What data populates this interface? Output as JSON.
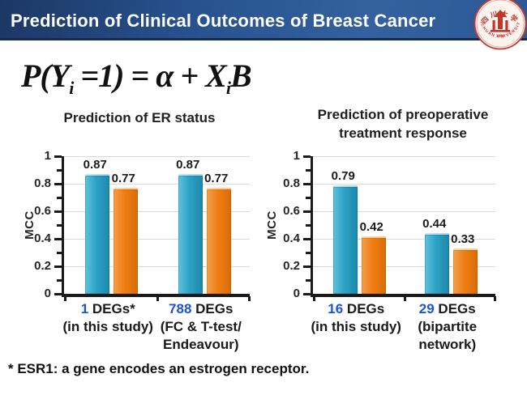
{
  "header": {
    "title": "Prediction of Clinical Outcomes of Breast Cancer"
  },
  "logo": {
    "top_text": "四川大学",
    "ring_text": "SICHUAN UNIVERSITY",
    "year": "1896"
  },
  "formula": {
    "part1": "P(Y",
    "sub1": "i",
    "part2": " =1) = α + X",
    "sub2": "i",
    "part3": "B"
  },
  "footnote": {
    "text": "* ESR1: a gene encodes an estrogen receptor."
  },
  "colors": {
    "teal": "#2ba2c6",
    "orange": "#ef7d13",
    "number_blue": "#1b52dc",
    "header_blue": "#2a5391",
    "gridline": "#d9d9d9"
  },
  "chart_data": [
    {
      "type": "bar",
      "title_lines": [
        "Prediction of ER status"
      ],
      "ylabel": "MCC",
      "ylim": [
        0,
        1
      ],
      "yticks": [
        0,
        0.2,
        0.4,
        0.6,
        0.8,
        1
      ],
      "grid": true,
      "legend": "none",
      "categories": [
        {
          "num": "1",
          "rest": " DEGs*",
          "sub": [
            "(in this study)"
          ]
        },
        {
          "num": "788",
          "rest": " DEGs",
          "sub": [
            "(FC & T-test/",
            "Endeavour)"
          ]
        }
      ],
      "series": [
        {
          "name": "teal",
          "color": "#2ba2c6",
          "values": [
            0.87,
            0.87
          ]
        },
        {
          "name": "orange",
          "color": "#ef7d13",
          "values": [
            0.77,
            0.77
          ]
        }
      ]
    },
    {
      "type": "bar",
      "title_lines": [
        "Prediction of preoperative",
        "treatment response"
      ],
      "ylabel": "MCC",
      "ylim": [
        0,
        1
      ],
      "yticks": [
        0,
        0.2,
        0.4,
        0.6,
        0.8,
        1
      ],
      "grid": true,
      "legend": "none",
      "categories": [
        {
          "num": "16",
          "rest": " DEGs",
          "sub": [
            "(in this study)"
          ]
        },
        {
          "num": "29",
          "rest": " DEGs",
          "sub": [
            "(bipartite",
            "network)"
          ]
        }
      ],
      "series": [
        {
          "name": "teal",
          "color": "#2ba2c6",
          "values": [
            0.79,
            0.44
          ]
        },
        {
          "name": "orange",
          "color": "#ef7d13",
          "values": [
            0.42,
            0.33
          ]
        }
      ]
    }
  ]
}
